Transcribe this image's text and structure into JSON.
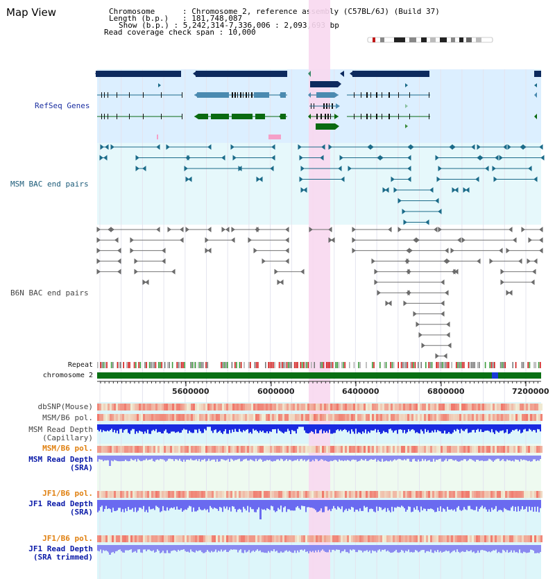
{
  "view": {
    "title": "Map View",
    "chromosome_key": "Chromosome",
    "chromosome_val": "Chromosome 2, reference assembly (C57BL/6J) (Build 37)",
    "length_key": "Length (b.p.)",
    "length_val": "181,748,087",
    "show_key": "Show (b.p.)",
    "show_val": "5,242,314-7,336,006 : 2,093,693 bp",
    "coverage_key": "Read coverage check span",
    "coverage_val": "10,000"
  },
  "tracks": {
    "refseq": "RefSeq Genes",
    "msm_bac": "MSM BAC end pairs",
    "b6n_bac": "B6N BAC end pairs",
    "repeat": "Repeat",
    "chromosome": "chromosome 2",
    "dbsnp": "dbSNP(Mouse)",
    "msm_b6_pol_1": "MSM/B6 pol.",
    "msm_depth_cap_1": "MSM Read Depth",
    "msm_depth_cap_2": "(Capillary)",
    "msm_b6_pol_2": "MSM/B6 pol.",
    "msm_depth_sra_1": "MSM Read Depth",
    "msm_depth_sra_2": "(SRA)",
    "jf1_b6_pol_1": "JF1/B6 pol.",
    "jf1_depth_sra_1": "JF1 Read Depth",
    "jf1_depth_sra_2": "(SRA)",
    "jf1_b6_pol_2": "JF1/B6 pol.",
    "jf1_depth_trim_1": "JF1 Read Depth",
    "jf1_depth_trim_2": "(SRA trimmed)"
  },
  "axis": {
    "ticks": [
      "5600000",
      "6000000",
      "6400000",
      "6800000",
      "7200000"
    ]
  },
  "colors": {
    "highlight": "#f8d8f0",
    "refseq_bg": "#dcefff",
    "msm_bg": "#e6f8fb",
    "navy_gene": "#0d2a5e",
    "steel_gene": "#4a8ab0",
    "green_gene": "#0a6a10",
    "chromosome_bar": "#0a7014",
    "depth_blue": "#1a2ae0",
    "depth_light": "#8a8af0"
  }
}
